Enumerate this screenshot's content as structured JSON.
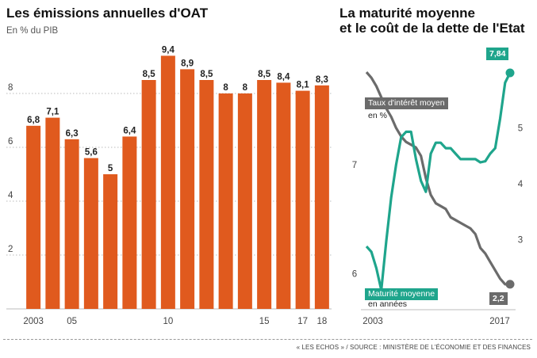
{
  "left": {
    "title": "Les émissions annuelles d'OAT",
    "subtitle": "En % du PIB"
  },
  "right": {
    "title_line1": "La maturité moyenne",
    "title_line2": "et le coût de la dette de l'Etat",
    "legend_rate": "Taux d'intérêt moyen",
    "legend_rate_unit": "en %",
    "legend_maturity": "Maturité moyenne",
    "legend_maturity_unit": "en années",
    "end_maturity_label": "7,84",
    "end_rate_label": "2,2"
  },
  "footer": {
    "source": "« LES ECHOS » / SOURCE : MINISTÈRE DE L'ÉCONOMIE ET DES FINANCES"
  },
  "colors": {
    "bars": "#e05a1e",
    "maturity": "#1fa58c",
    "rate": "#6b6b6b"
  },
  "chart_data": [
    {
      "type": "bar",
      "title": "Les émissions annuelles d'OAT",
      "subtitle": "En % du PIB",
      "categories": [
        "2003",
        "2004",
        "2005",
        "2006",
        "2007",
        "2008",
        "2009",
        "2010",
        "2011",
        "2012",
        "2013",
        "2014",
        "2015",
        "2016",
        "2017",
        "2018"
      ],
      "values": [
        6.8,
        7.1,
        6.3,
        5.6,
        5.0,
        6.4,
        8.5,
        9.4,
        8.9,
        8.5,
        8.0,
        8.0,
        8.5,
        8.4,
        8.1,
        8.3
      ],
      "value_labels": [
        "6,8",
        "7,1",
        "6,3",
        "5,6",
        "5",
        "6,4",
        "8,5",
        "9,4",
        "8,9",
        "8,5",
        "8",
        "8",
        "8,5",
        "8,4",
        "8,1",
        "8,3"
      ],
      "x_tick_labels": [
        {
          "index": 0,
          "label": "2003"
        },
        {
          "index": 2,
          "label": "05"
        },
        {
          "index": 7,
          "label": "10"
        },
        {
          "index": 12,
          "label": "15"
        },
        {
          "index": 14,
          "label": "17"
        },
        {
          "index": 15,
          "label": "18"
        }
      ],
      "y_ticks": [
        2,
        4,
        6,
        8
      ],
      "ylim": [
        0,
        10
      ],
      "grid": true
    },
    {
      "type": "line",
      "title": "La maturité moyenne et le coût de la dette de l'Etat",
      "x_start_label": "2003",
      "x_end_label": "2017",
      "x_range": [
        2003,
        2017.5
      ],
      "series": [
        {
          "name": "Maturité moyenne",
          "unit": "en années",
          "axis": "left",
          "x": [
            2003,
            2003.5,
            2004,
            2004.5,
            2005,
            2005.5,
            2006,
            2006.5,
            2007,
            2007.5,
            2008,
            2008.5,
            2009,
            2009.5,
            2010,
            2010.5,
            2011,
            2011.5,
            2012,
            2012.5,
            2013,
            2013.5,
            2014,
            2014.5,
            2015,
            2015.5,
            2016,
            2016.5,
            2017,
            2017.5
          ],
          "values": [
            6.25,
            6.2,
            6.05,
            5.85,
            6.3,
            6.7,
            7.0,
            7.25,
            7.3,
            7.3,
            7.05,
            6.85,
            6.75,
            7.1,
            7.2,
            7.2,
            7.15,
            7.15,
            7.1,
            7.05,
            7.05,
            7.05,
            7.05,
            7.02,
            7.03,
            7.1,
            7.15,
            7.42,
            7.75,
            7.84
          ]
        },
        {
          "name": "Taux d'intérêt moyen",
          "unit": "en %",
          "axis": "right",
          "x": [
            2003,
            2003.5,
            2004,
            2004.5,
            2005,
            2005.5,
            2006,
            2006.5,
            2007,
            2007.5,
            2008,
            2008.5,
            2009,
            2009.5,
            2010,
            2010.5,
            2011,
            2011.5,
            2012,
            2012.5,
            2013,
            2013.5,
            2014,
            2014.5,
            2015,
            2015.5,
            2016,
            2016.5,
            2017,
            2017.5
          ],
          "values": [
            6.0,
            5.9,
            5.75,
            5.55,
            5.35,
            5.2,
            5.0,
            4.85,
            4.75,
            4.7,
            4.65,
            4.5,
            4.1,
            3.8,
            3.65,
            3.6,
            3.55,
            3.4,
            3.35,
            3.3,
            3.25,
            3.2,
            3.1,
            2.85,
            2.75,
            2.6,
            2.45,
            2.3,
            2.2,
            2.2
          ]
        }
      ],
      "left_ticks": [
        6,
        7
      ],
      "left_range": [
        5.75,
        8.0
      ],
      "right_ticks": [
        3,
        4,
        5
      ],
      "right_range": [
        1.9,
        6.3
      ]
    }
  ]
}
